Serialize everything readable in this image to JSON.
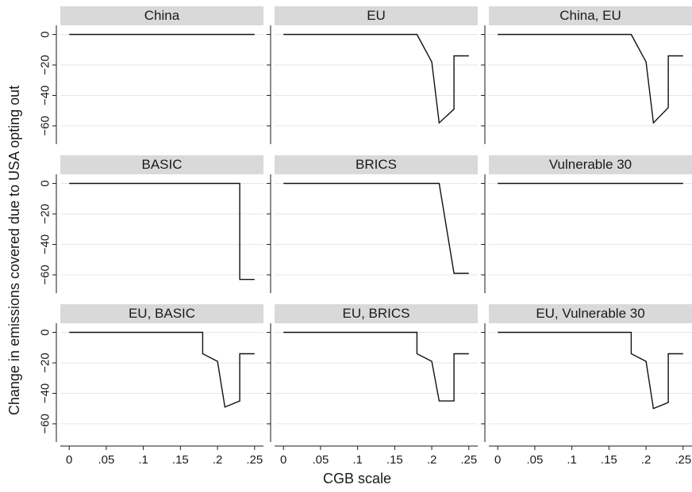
{
  "chart_data": {
    "type": "line",
    "xlabel": "CGB scale",
    "ylabel": "Change in emissions covered due to USA opting out",
    "xlim": [
      -0.012,
      0.262
    ],
    "ylim": [
      -72,
      6
    ],
    "x_ticks": [
      0,
      0.05,
      0.1,
      0.15,
      0.2,
      0.25
    ],
    "x_tick_labels": [
      "0",
      ".05",
      ".1",
      ".15",
      ".2",
      ".25"
    ],
    "y_ticks": [
      0,
      -20,
      -40,
      -60
    ],
    "y_tick_labels": [
      "0",
      "−20",
      "−40",
      "−60"
    ],
    "grid": true,
    "layout": "3x3 facets",
    "panels": [
      {
        "title": "China",
        "x": [
          0,
          0.25
        ],
        "y": [
          0,
          0
        ]
      },
      {
        "title": "EU",
        "x": [
          0,
          0.18,
          0.2,
          0.21,
          0.23,
          0.23,
          0.25
        ],
        "y": [
          0,
          0,
          -18,
          -58,
          -49,
          -14,
          -14
        ]
      },
      {
        "title": "China, EU",
        "x": [
          0,
          0.18,
          0.2,
          0.21,
          0.23,
          0.23,
          0.25
        ],
        "y": [
          0,
          0,
          -18,
          -58,
          -48,
          -14,
          -14
        ]
      },
      {
        "title": "BASIC",
        "x": [
          0,
          0.23,
          0.23,
          0.25
        ],
        "y": [
          0,
          0,
          -63,
          -63
        ]
      },
      {
        "title": "BRICS",
        "x": [
          0,
          0.21,
          0.23,
          0.25
        ],
        "y": [
          0,
          0,
          -59,
          -59
        ]
      },
      {
        "title": "Vulnerable 30",
        "x": [
          0,
          0.25
        ],
        "y": [
          0,
          0
        ]
      },
      {
        "title": "EU, BASIC",
        "x": [
          0,
          0.18,
          0.18,
          0.2,
          0.21,
          0.23,
          0.23,
          0.25
        ],
        "y": [
          0,
          0,
          -14,
          -19,
          -49,
          -45,
          -14,
          -14
        ]
      },
      {
        "title": "EU, BRICS",
        "x": [
          0,
          0.18,
          0.18,
          0.2,
          0.21,
          0.23,
          0.23,
          0.25
        ],
        "y": [
          0,
          0,
          -14,
          -19,
          -45,
          -45,
          -14,
          -14
        ]
      },
      {
        "title": "EU, Vulnerable 30",
        "x": [
          0,
          0.18,
          0.18,
          0.2,
          0.21,
          0.23,
          0.23,
          0.25
        ],
        "y": [
          0,
          0,
          -14,
          -19,
          -50,
          -46,
          -14,
          -14
        ]
      }
    ]
  }
}
